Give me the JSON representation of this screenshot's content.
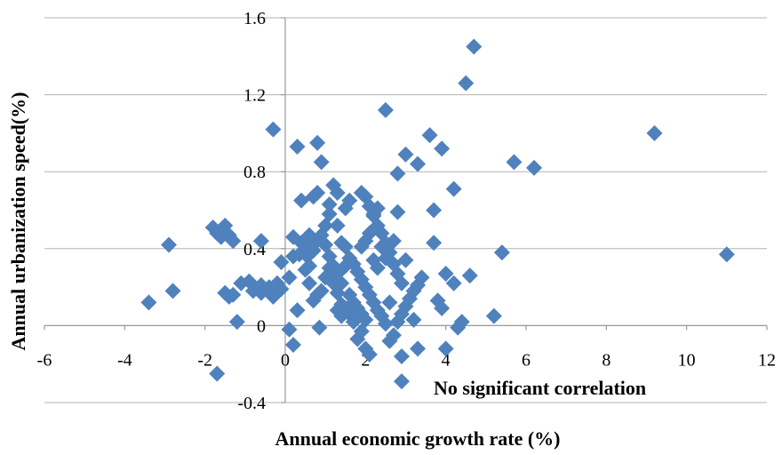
{
  "chart_data": {
    "type": "scatter",
    "title": "",
    "xlabel": "Annual economic growth rate (%)",
    "ylabel": "Annual urbanization speed(%)",
    "xlim": [
      -6,
      12
    ],
    "ylim": [
      -0.4,
      1.6
    ],
    "x_ticks": [
      "-6",
      "-4",
      "-2",
      "0",
      "2",
      "4",
      "6",
      "8",
      "10",
      "12"
    ],
    "y_ticks": [
      "1.6",
      "1.2",
      "0.8",
      "0.4",
      "0",
      "-0.4"
    ],
    "grid": "horizontal",
    "annotation": "No significant correlation",
    "marker": "diamond",
    "color": "#4f81bd",
    "points": [
      [
        -3.4,
        0.12
      ],
      [
        -2.9,
        0.42
      ],
      [
        -2.8,
        0.18
      ],
      [
        -1.8,
        0.51
      ],
      [
        -1.7,
        0.48
      ],
      [
        -1.6,
        0.46
      ],
      [
        -1.5,
        0.52
      ],
      [
        -1.4,
        0.47
      ],
      [
        -1.3,
        0.44
      ],
      [
        -1.1,
        0.22
      ],
      [
        -0.9,
        0.23
      ],
      [
        -0.6,
        0.44
      ],
      [
        -0.3,
        1.02
      ],
      [
        -0.6,
        0.17
      ],
      [
        -0.3,
        0.15
      ],
      [
        -0.1,
        0.33
      ],
      [
        0.1,
        0.25
      ],
      [
        0.2,
        0.36
      ],
      [
        -1.5,
        0.17
      ],
      [
        -1.4,
        0.15
      ],
      [
        -1.3,
        0.16
      ],
      [
        -1.2,
        0.02
      ],
      [
        -1.7,
        -0.25
      ],
      [
        -0.1,
        0.19
      ],
      [
        -0.2,
        0.22
      ],
      [
        -0.4,
        0.2
      ],
      [
        -0.6,
        0.21
      ],
      [
        -0.8,
        0.18
      ],
      [
        0.1,
        -0.02
      ],
      [
        0.2,
        -0.1
      ],
      [
        0.3,
        0.08
      ],
      [
        0.2,
        0.46
      ],
      [
        0.35,
        0.37
      ],
      [
        0.4,
        0.65
      ],
      [
        0.5,
        0.42
      ],
      [
        0.55,
        0.36
      ],
      [
        0.6,
        0.31
      ],
      [
        0.6,
        0.47
      ],
      [
        0.7,
        0.67
      ],
      [
        0.8,
        0.95
      ],
      [
        0.8,
        0.69
      ],
      [
        0.9,
        0.85
      ],
      [
        0.85,
        -0.01
      ],
      [
        1.0,
        0.52
      ],
      [
        1.1,
        0.58
      ],
      [
        1.1,
        0.63
      ],
      [
        1.2,
        0.73
      ],
      [
        1.3,
        0.69
      ],
      [
        1.3,
        0.52
      ],
      [
        1.4,
        0.43
      ],
      [
        1.5,
        0.41
      ],
      [
        1.6,
        0.35
      ],
      [
        1.7,
        0.32
      ],
      [
        1.2,
        0.22
      ],
      [
        1.3,
        0.17
      ],
      [
        1.4,
        0.11
      ],
      [
        1.5,
        0.09
      ],
      [
        1.6,
        0.06
      ],
      [
        1.7,
        0.02
      ],
      [
        1.8,
        -0.07
      ],
      [
        1.9,
        -0.03
      ],
      [
        1.9,
        0.69
      ],
      [
        2.0,
        0.67
      ],
      [
        2.1,
        0.62
      ],
      [
        2.2,
        0.57
      ],
      [
        2.3,
        0.52
      ],
      [
        2.4,
        0.48
      ],
      [
        2.5,
        0.43
      ],
      [
        2.6,
        0.38
      ],
      [
        2.7,
        0.32
      ],
      [
        2.8,
        0.27
      ],
      [
        2.9,
        0.22
      ],
      [
        1.8,
        0.28
      ],
      [
        1.9,
        0.24
      ],
      [
        2.0,
        0.2
      ],
      [
        2.1,
        0.16
      ],
      [
        2.2,
        0.12
      ],
      [
        2.3,
        0.08
      ],
      [
        2.4,
        0.05
      ],
      [
        2.5,
        0.01
      ],
      [
        2.0,
        -0.12
      ],
      [
        2.1,
        -0.15
      ],
      [
        2.6,
        -0.08
      ],
      [
        2.7,
        -0.05
      ],
      [
        2.8,
        0.02
      ],
      [
        2.9,
        0.06
      ],
      [
        3.0,
        0.1
      ],
      [
        3.1,
        0.14
      ],
      [
        3.2,
        0.18
      ],
      [
        3.3,
        0.21
      ],
      [
        3.4,
        0.25
      ],
      [
        2.5,
        1.12
      ],
      [
        2.8,
        0.79
      ],
      [
        3.0,
        0.89
      ],
      [
        3.3,
        0.84
      ],
      [
        3.6,
        0.99
      ],
      [
        3.9,
        0.92
      ],
      [
        4.2,
        0.71
      ],
      [
        3.7,
        0.6
      ],
      [
        3.7,
        0.43
      ],
      [
        3.8,
        0.13
      ],
      [
        3.9,
        0.09
      ],
      [
        4.0,
        0.27
      ],
      [
        4.0,
        -0.12
      ],
      [
        4.2,
        0.22
      ],
      [
        4.3,
        -0.01
      ],
      [
        4.4,
        0.02
      ],
      [
        4.6,
        0.26
      ],
      [
        4.5,
        1.26
      ],
      [
        4.7,
        1.45
      ],
      [
        5.2,
        0.05
      ],
      [
        5.4,
        0.38
      ],
      [
        5.7,
        0.85
      ],
      [
        6.2,
        0.82
      ],
      [
        9.2,
        1.0
      ],
      [
        11.0,
        0.37
      ],
      [
        2.9,
        -0.29
      ],
      [
        2.9,
        -0.16
      ],
      [
        2.6,
        0.12
      ],
      [
        2.5,
        0.35
      ],
      [
        2.4,
        0.41
      ],
      [
        2.3,
        0.61
      ],
      [
        2.2,
        0.58
      ],
      [
        2.1,
        0.48
      ],
      [
        2.0,
        0.44
      ],
      [
        1.9,
        0.41
      ],
      [
        1.0,
        0.42
      ],
      [
        0.9,
        0.47
      ],
      [
        0.8,
        0.44
      ],
      [
        0.7,
        0.39
      ],
      [
        0.6,
        0.22
      ],
      [
        0.7,
        0.13
      ],
      [
        0.8,
        0.16
      ],
      [
        0.9,
        0.18
      ],
      [
        1.0,
        0.25
      ],
      [
        1.1,
        0.3
      ],
      [
        0.4,
        0.43
      ],
      [
        0.5,
        0.29
      ],
      [
        1.5,
        0.31
      ],
      [
        1.4,
        0.22
      ],
      [
        1.3,
        0.08
      ],
      [
        2.7,
        0.44
      ],
      [
        2.8,
        0.59
      ],
      [
        3.0,
        0.34
      ],
      [
        3.2,
        0.03
      ],
      [
        3.3,
        -0.12
      ],
      [
        1.6,
        0.16
      ],
      [
        1.7,
        0.12
      ],
      [
        1.8,
        0.09
      ],
      [
        1.9,
        0.06
      ],
      [
        2.0,
        0.03
      ],
      [
        1.1,
        0.36
      ],
      [
        1.2,
        0.31
      ],
      [
        1.3,
        0.27
      ],
      [
        0.3,
        0.93
      ],
      [
        1.4,
        0.05
      ],
      [
        1.5,
        0.61
      ],
      [
        1.6,
        0.65
      ],
      [
        2.2,
        0.34
      ],
      [
        2.3,
        0.3
      ]
    ]
  }
}
